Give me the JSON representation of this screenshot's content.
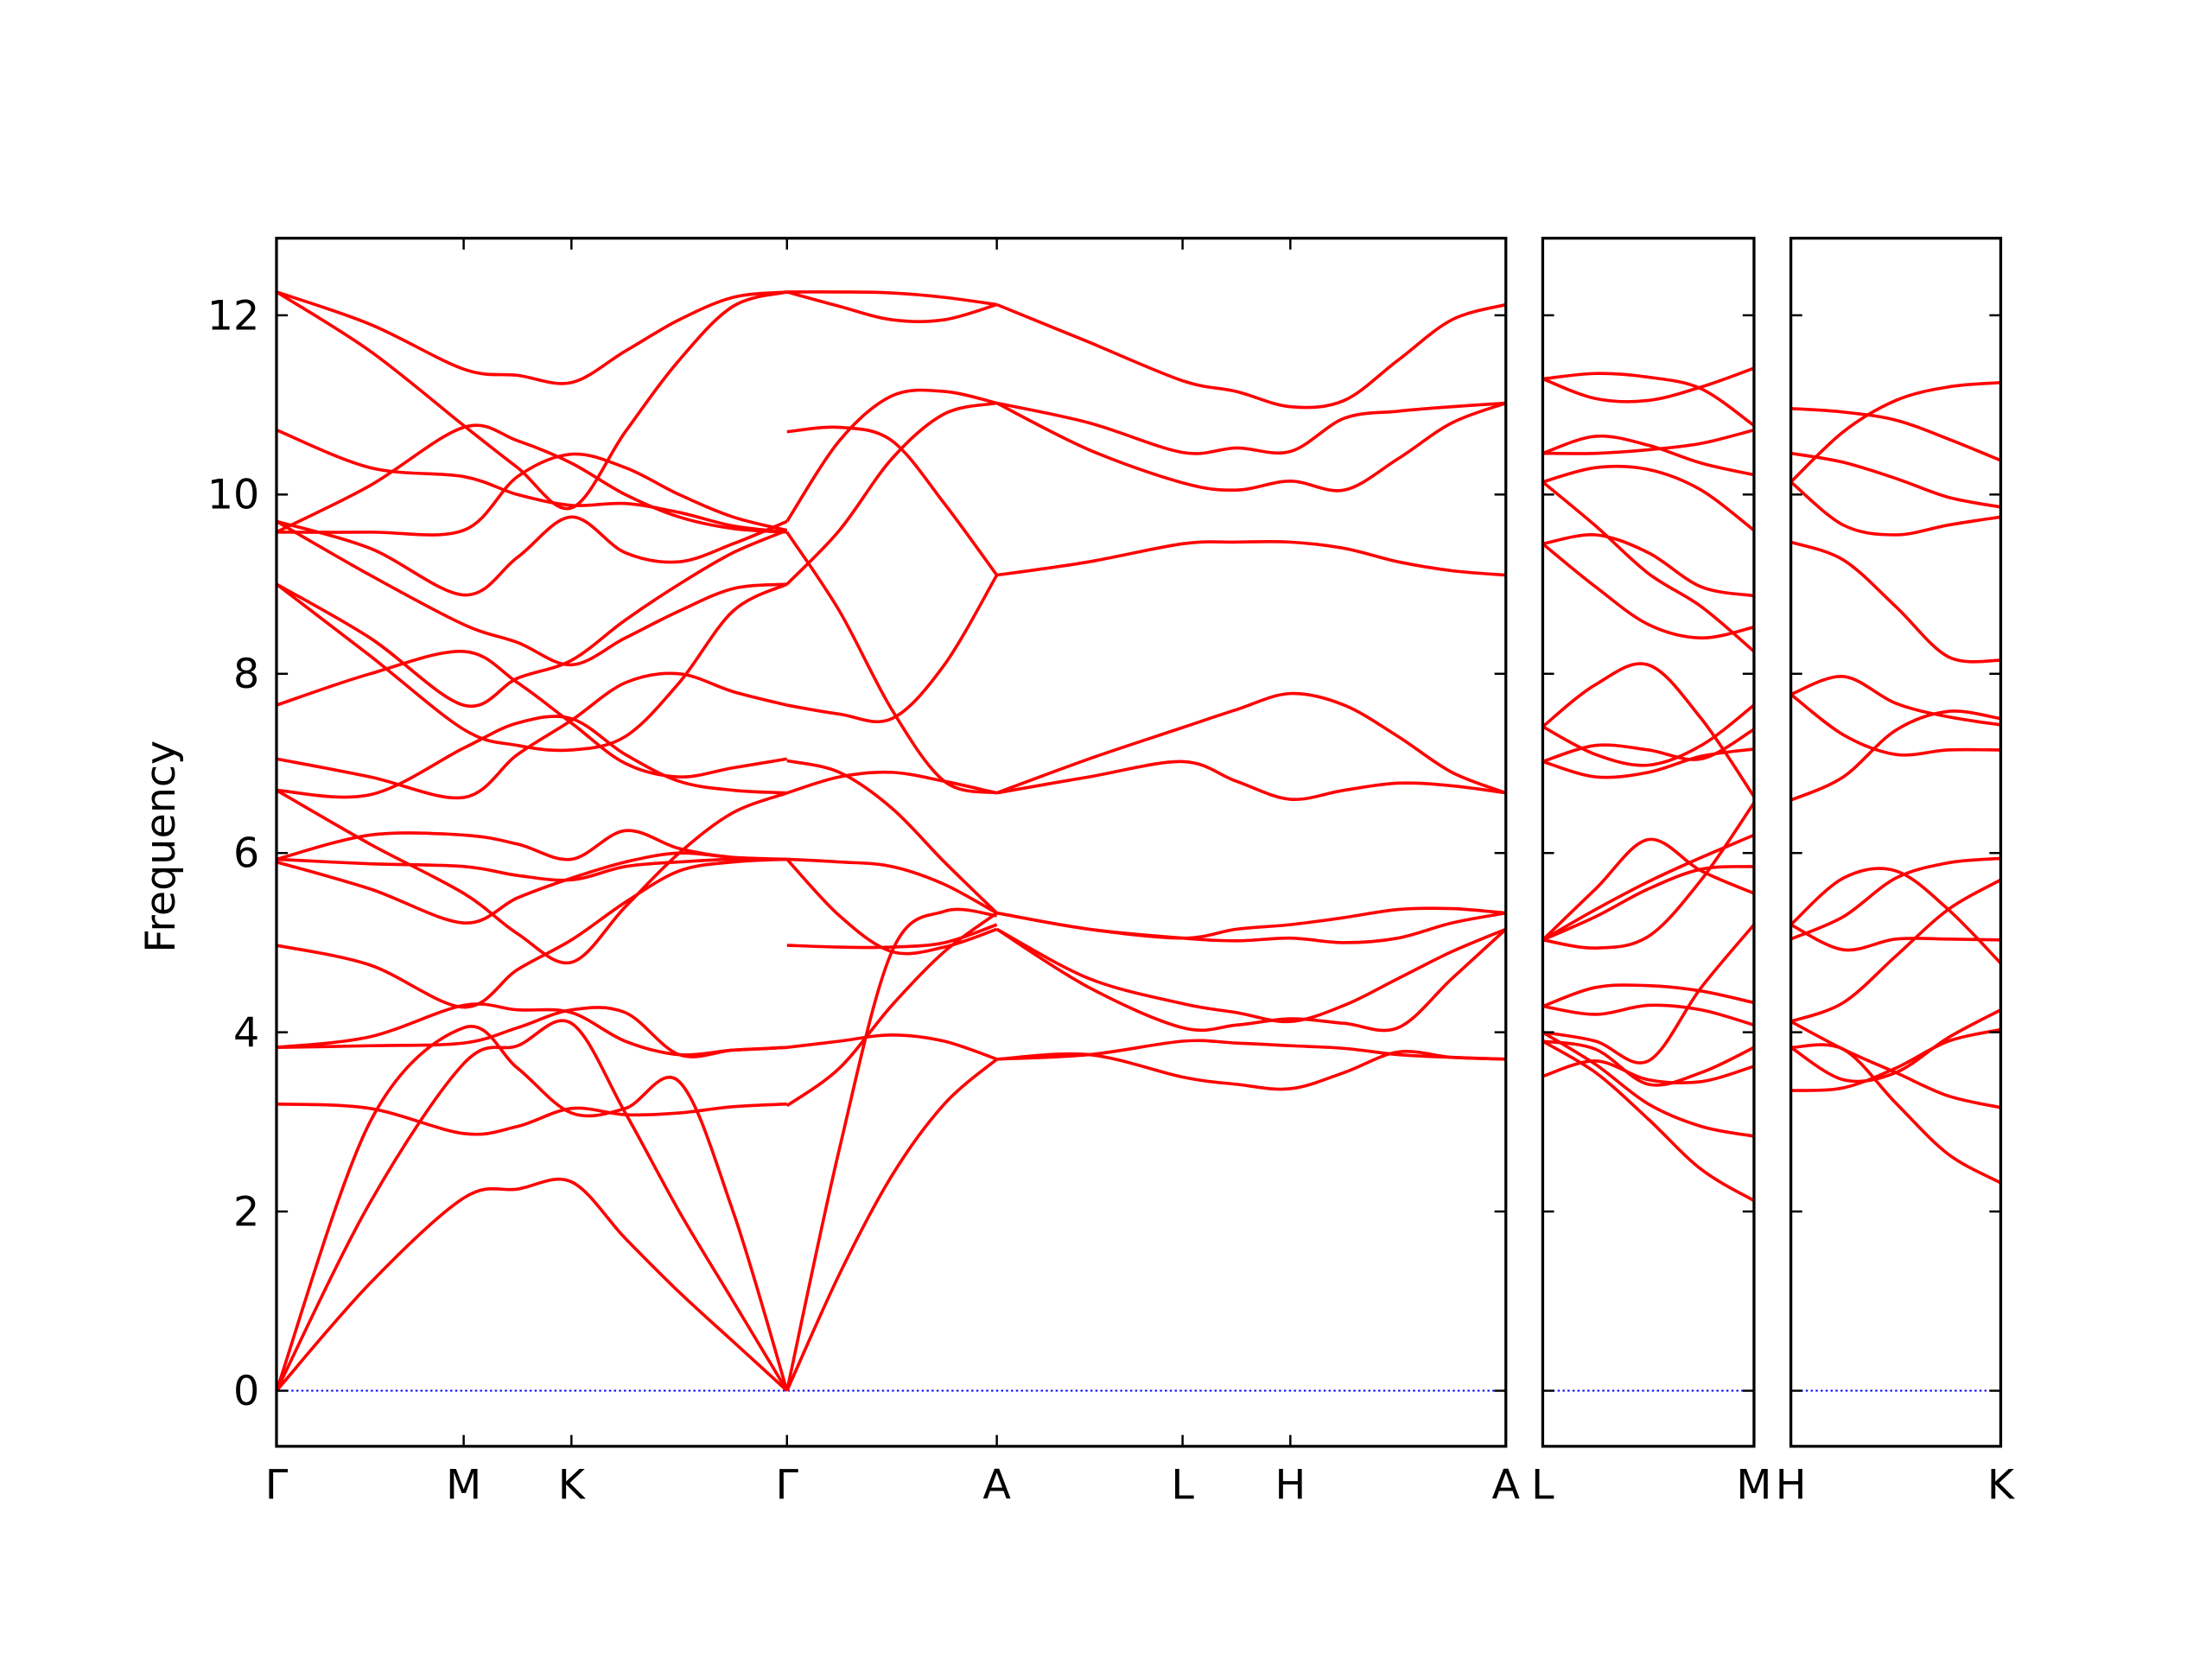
{
  "chart_data": {
    "type": "line",
    "title": "",
    "ylabel": "Frequency",
    "xlabel": "",
    "ylim": [
      -0.62,
      12.86
    ],
    "yticks": [
      0,
      2,
      4,
      6,
      8,
      10,
      12
    ],
    "ytick_labels": [
      "0",
      "2",
      "4",
      "6",
      "8",
      "10",
      "12"
    ],
    "grid": false,
    "line_color": "#ff0000",
    "zero_line_color": "#0000ff",
    "panels": [
      {
        "xrange": [
          0,
          8.67
        ],
        "ticks": [
          0,
          1.32,
          2.08,
          3.6,
          5.08,
          6.39,
          7.15,
          8.67
        ],
        "tick_labels": [
          "Γ",
          "M",
          "K",
          "Γ",
          "A",
          "L",
          "H",
          "A"
        ],
        "segments": [
          {
            "x": [
              0,
              0.66,
              1.32,
              1.7,
              2.08,
              2.46,
              2.84,
              3.22,
              3.6
            ],
            "lines": [
              [
                12.26,
                11.9,
                11.4,
                11.33,
                11.25,
                11.6,
                11.95,
                12.2,
                12.26
              ],
              [
                12.26,
                11.6,
                10.77,
                10.3,
                9.85,
                10.7,
                11.5,
                12.1,
                12.26
              ],
              [
                10.72,
                10.3,
                10.2,
                10.0,
                9.88,
                9.9,
                9.8,
                9.65,
                9.58
              ],
              [
                9.58,
                9.58,
                9.6,
                10.2,
                10.45,
                10.3,
                10.0,
                9.75,
                9.6
              ],
              [
                9.58,
                10.1,
                10.75,
                10.6,
                10.35,
                10.0,
                9.75,
                9.62,
                9.58
              ],
              [
                9.7,
                9.4,
                8.88,
                9.3,
                9.75,
                9.35,
                9.25,
                9.45,
                9.7
              ],
              [
                9.7,
                9.1,
                8.55,
                8.35,
                8.1,
                8.4,
                8.7,
                8.95,
                9.0
              ],
              [
                9.0,
                8.4,
                7.65,
                7.95,
                8.15,
                8.6,
                9.0,
                9.35,
                9.6
              ],
              [
                9.0,
                8.2,
                7.38,
                7.2,
                7.15,
                7.3,
                7.9,
                8.7,
                9.0
              ],
              [
                7.65,
                8.0,
                8.25,
                7.9,
                7.45,
                7.0,
                6.85,
                6.95,
                7.05
              ],
              [
                7.05,
                6.85,
                6.62,
                7.1,
                7.48,
                7.9,
                8.0,
                7.8,
                7.65
              ],
              [
                6.7,
                6.65,
                7.17,
                7.45,
                7.5,
                7.1,
                6.8,
                6.7,
                6.67
              ],
              [
                6.7,
                6.1,
                5.55,
                5.1,
                4.78,
                5.4,
                6.0,
                6.45,
                6.67
              ],
              [
                5.93,
                6.2,
                6.2,
                6.1,
                5.93,
                6.25,
                6.05,
                5.95,
                5.93
              ],
              [
                5.93,
                5.88,
                5.85,
                5.75,
                5.7,
                5.85,
                5.9,
                5.93,
                5.93
              ],
              [
                5.9,
                5.6,
                5.22,
                5.5,
                5.72,
                5.9,
                6.0,
                5.95,
                5.93
              ],
              [
                4.97,
                4.75,
                4.28,
                4.7,
                5.03,
                5.45,
                5.8,
                5.9,
                5.93
              ],
              [
                3.83,
                3.85,
                3.88,
                4.05,
                4.25,
                4.22,
                3.75,
                3.8,
                3.83
              ],
              [
                3.83,
                3.95,
                4.3,
                4.25,
                4.22,
                3.9,
                3.75,
                3.8,
                3.83
              ],
              [
                3.2,
                3.15,
                2.87,
                2.95,
                3.15,
                3.08,
                3.1,
                3.17,
                3.2
              ],
              [
                0,
                2.1,
                3.65,
                3.85,
                4.1,
                3.1,
                2.0,
                1.0,
                0
              ],
              [
                0,
                3.0,
                4.05,
                3.6,
                3.1,
                3.15,
                3.45,
                2.0,
                0
              ],
              [
                0,
                1.2,
                2.15,
                2.25,
                2.33,
                1.7,
                1.1,
                0.55,
                0
              ]
            ]
          },
          {
            "x": [
              3.6,
              3.97,
              4.34,
              4.71,
              5.08
            ],
            "lines": [
              [
                12.26,
                12.26,
                12.25,
                12.2,
                12.12
              ],
              [
                12.26,
                12.1,
                11.95,
                11.95,
                12.12
              ],
              [
                10.7,
                10.75,
                10.6,
                9.9,
                9.1
              ],
              [
                9.7,
                10.6,
                11.1,
                11.15,
                11.02
              ],
              [
                9.58,
                8.7,
                7.6,
                6.8,
                6.67
              ],
              [
                9.0,
                9.6,
                10.4,
                10.9,
                11.02
              ],
              [
                7.65,
                7.55,
                7.5,
                8.1,
                9.1
              ],
              [
                7.03,
                6.9,
                6.5,
                5.9,
                5.33
              ],
              [
                6.67,
                6.85,
                6.9,
                6.8,
                6.67
              ],
              [
                5.93,
                5.9,
                5.85,
                5.65,
                5.33
              ],
              [
                5.93,
                5.3,
                4.9,
                4.95,
                5.15
              ],
              [
                4.97,
                4.95,
                4.95,
                5.0,
                5.2
              ],
              [
                3.83,
                3.9,
                3.97,
                3.9,
                3.7
              ],
              [
                3.18,
                3.6,
                4.3,
                4.9,
                5.33
              ],
              [
                0,
                2.7,
                4.9,
                5.35,
                5.3
              ],
              [
                0,
                1.3,
                2.4,
                3.2,
                3.7
              ]
            ]
          },
          {
            "x": [
              5.08,
              5.73,
              6.39,
              6.77,
              7.15,
              7.53,
              7.91,
              8.29,
              8.67
            ],
            "lines": [
              [
                12.12,
                11.7,
                11.27,
                11.15,
                10.98,
                11.05,
                11.5,
                11.95,
                12.12
              ],
              [
                11.02,
                10.8,
                10.47,
                10.52,
                10.48,
                10.85,
                10.93,
                10.98,
                11.02
              ],
              [
                11.02,
                10.5,
                10.13,
                10.05,
                10.15,
                10.05,
                10.4,
                10.8,
                11.02
              ],
              [
                9.1,
                9.25,
                9.45,
                9.47,
                9.47,
                9.4,
                9.25,
                9.15,
                9.1
              ],
              [
                6.67,
                7.05,
                7.4,
                7.6,
                7.78,
                7.65,
                7.3,
                6.9,
                6.67
              ],
              [
                6.67,
                6.85,
                7.02,
                6.8,
                6.6,
                6.7,
                6.78,
                6.75,
                6.67
              ],
              [
                5.33,
                5.15,
                5.05,
                5.02,
                5.05,
                5.0,
                5.05,
                5.22,
                5.33
              ],
              [
                5.33,
                5.15,
                5.05,
                5.15,
                5.2,
                5.28,
                5.37,
                5.38,
                5.33
              ],
              [
                5.15,
                4.6,
                4.32,
                4.22,
                4.12,
                4.3,
                4.6,
                4.9,
                5.15
              ],
              [
                5.15,
                4.5,
                4.05,
                4.08,
                4.15,
                4.1,
                4.05,
                4.6,
                5.15
              ],
              [
                3.7,
                3.75,
                3.9,
                3.88,
                3.85,
                3.82,
                3.75,
                3.72,
                3.7
              ],
              [
                3.7,
                3.75,
                3.5,
                3.42,
                3.37,
                3.55,
                3.78,
                3.72,
                3.7
              ]
            ]
          }
        ]
      },
      {
        "xrange": [
          0,
          1
        ],
        "ticks": [
          0,
          1
        ],
        "tick_labels": [
          "L",
          "M"
        ],
        "segments": [
          {
            "x": [
              0,
              0.25,
              0.5,
              0.75,
              1
            ],
            "lines": [
              [
                11.29,
                11.35,
                11.31,
                11.18,
                10.77
              ],
              [
                11.29,
                11.07,
                11.05,
                11.2,
                11.41
              ],
              [
                10.46,
                10.65,
                10.55,
                10.35,
                10.22
              ],
              [
                10.46,
                10.46,
                10.5,
                10.57,
                10.72
              ],
              [
                10.14,
                10.3,
                10.28,
                10.05,
                9.6
              ],
              [
                10.14,
                9.65,
                9.12,
                8.75,
                8.25
              ],
              [
                9.45,
                9.55,
                9.35,
                8.97,
                8.87
              ],
              [
                9.45,
                8.97,
                8.55,
                8.4,
                8.52
              ],
              [
                7.41,
                7.88,
                8.1,
                7.5,
                6.63
              ],
              [
                7.41,
                7.1,
                6.98,
                7.2,
                7.65
              ],
              [
                7.02,
                7.2,
                7.15,
                7.05,
                7.38
              ],
              [
                7.02,
                6.85,
                6.9,
                7.08,
                7.16
              ],
              [
                5.03,
                5.6,
                6.15,
                5.8,
                5.55
              ],
              [
                5.03,
                5.37,
                5.68,
                5.95,
                6.2
              ],
              [
                5.03,
                5.29,
                5.6,
                5.82,
                5.85
              ],
              [
                5.03,
                4.94,
                5.07,
                5.7,
                6.56
              ],
              [
                4.29,
                4.5,
                4.52,
                4.46,
                4.33
              ],
              [
                4.29,
                4.2,
                4.3,
                4.25,
                4.08
              ],
              [
                4.0,
                3.9,
                3.68,
                4.5,
                5.2
              ],
              [
                3.9,
                3.81,
                3.42,
                3.55,
                3.83
              ],
              [
                3.51,
                3.68,
                3.47,
                3.45,
                3.62
              ],
              [
                3.9,
                3.55,
                3.03,
                2.47,
                2.12
              ],
              [
                4.0,
                3.64,
                3.2,
                2.95,
                2.84
              ]
            ]
          }
        ]
      },
      {
        "xrange": [
          0,
          1
        ],
        "ticks": [
          0,
          1
        ],
        "tick_labels": [
          "H",
          "K"
        ],
        "segments": [
          {
            "x": [
              0,
              0.25,
              0.5,
              0.75,
              1
            ],
            "lines": [
              [
                10.96,
                10.92,
                10.83,
                10.62,
                10.38
              ],
              [
                10.14,
                10.7,
                11.05,
                11.2,
                11.25
              ],
              [
                10.46,
                10.36,
                10.18,
                9.97,
                9.86
              ],
              [
                10.14,
                9.66,
                9.55,
                9.66,
                9.75
              ],
              [
                9.47,
                9.27,
                8.75,
                8.19,
                8.15
              ],
              [
                7.77,
                7.97,
                7.67,
                7.52,
                7.43
              ],
              [
                7.77,
                7.32,
                7.1,
                7.15,
                7.15
              ],
              [
                6.59,
                6.85,
                7.37,
                7.58,
                7.5
              ],
              [
                5.2,
                5.72,
                5.8,
                5.37,
                4.77
              ],
              [
                5.04,
                5.29,
                5.72,
                5.89,
                5.94
              ],
              [
                5.2,
                4.92,
                5.04,
                5.04,
                5.03
              ],
              [
                4.12,
                4.33,
                4.85,
                5.37,
                5.7
              ],
              [
                4.12,
                3.81,
                3.55,
                3.29,
                3.16
              ],
              [
                3.83,
                3.81,
                3.21,
                2.64,
                2.32
              ],
              [
                3.35,
                3.38,
                3.6,
                3.9,
                4.03
              ],
              [
                3.83,
                3.47,
                3.55,
                3.94,
                4.25
              ]
            ]
          }
        ]
      }
    ]
  }
}
